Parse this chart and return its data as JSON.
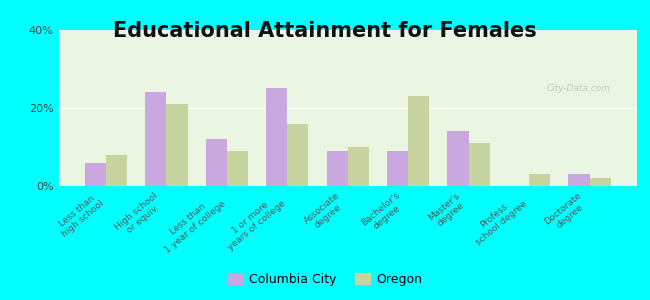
{
  "title": "Educational Attainment for Females",
  "categories": [
    "Less than\nhigh school",
    "High school\nor equiv.",
    "Less than\n1 year of college",
    "1 or more\nyears of college",
    "Associate\ndegree",
    "Bachelor's\ndegree",
    "Master's\ndegree",
    "Profess.\nschool degree",
    "Doctorate\ndegree"
  ],
  "columbia_city": [
    6,
    24,
    12,
    25,
    9,
    9,
    14,
    0,
    3
  ],
  "oregon": [
    8,
    21,
    9,
    16,
    10,
    23,
    11,
    3,
    2
  ],
  "columbia_color": "#c9a8e0",
  "oregon_color": "#c8d4a0",
  "background_color": "#eaf5e2",
  "outer_background": "#00ffff",
  "ylim": [
    0,
    40
  ],
  "yticks": [
    0,
    20,
    40
  ],
  "ytick_labels": [
    "0%",
    "20%",
    "40%"
  ],
  "legend_labels": [
    "Columbia City",
    "Oregon"
  ],
  "title_fontsize": 15,
  "bar_width": 0.35
}
